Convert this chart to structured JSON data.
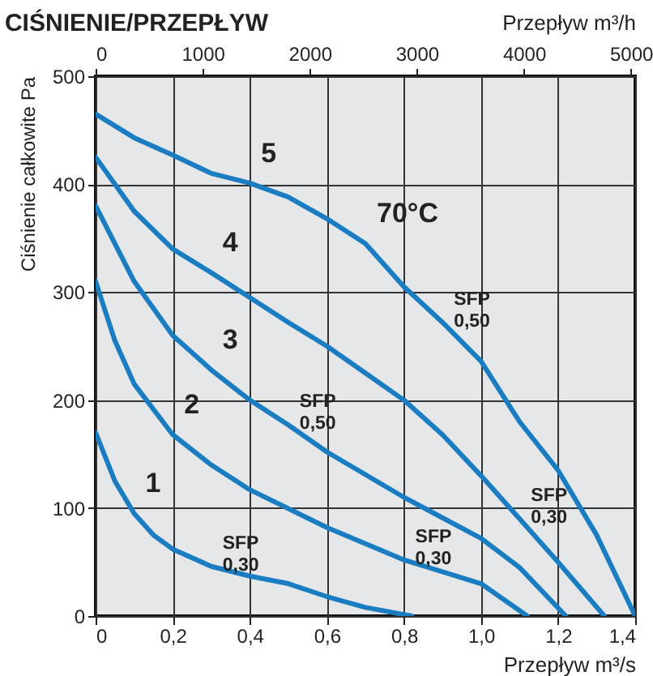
{
  "chart_data": {
    "type": "line",
    "title": "CIŚNIENIE/PRZEPŁYW",
    "xlabel": "Przepływ m³/s",
    "ylabel": "Ciśnienie całkowite Pa",
    "x2label": "Przepływ m³/h",
    "xlim": [
      0,
      1.4
    ],
    "xticks": [
      0,
      {
        "value": 0.2,
        "label": "0,2"
      },
      {
        "value": 0.4,
        "label": "0,4"
      },
      {
        "value": 0.6,
        "label": "0,6"
      },
      {
        "value": 0.8,
        "label": "0,8"
      },
      {
        "value": 1.0,
        "label": "1,0"
      },
      {
        "value": 1.2,
        "label": "1,2"
      },
      {
        "value": 1.4,
        "label": "1,4"
      }
    ],
    "x2lim": [
      0,
      5040
    ],
    "x2ticks": [
      0,
      1000,
      2000,
      3000,
      4000,
      5000
    ],
    "ylim": [
      0,
      500
    ],
    "yticks": [
      0,
      100,
      200,
      300,
      400,
      500
    ],
    "grid": true,
    "legend": false,
    "marker": "none",
    "line_style": "solid",
    "series": [
      {
        "color": "#1a7dc2",
        "x": [
          0,
          0.05,
          0.1,
          0.15,
          0.2,
          0.3,
          0.4,
          0.5,
          0.6,
          0.7,
          0.82
        ],
        "values": [
          170,
          125,
          95,
          75,
          62,
          46,
          37,
          30,
          18,
          8,
          0
        ]
      },
      {
        "color": "#1a7dc2",
        "x": [
          0,
          0.05,
          0.1,
          0.2,
          0.3,
          0.4,
          0.6,
          0.8,
          1.0,
          1.12
        ],
        "values": [
          310,
          255,
          215,
          168,
          140,
          117,
          82,
          52,
          30,
          0
        ]
      },
      {
        "color": "#1a7dc2",
        "x": [
          0,
          0.1,
          0.2,
          0.3,
          0.4,
          0.5,
          0.6,
          0.8,
          1.0,
          1.1,
          1.22
        ],
        "values": [
          380,
          310,
          260,
          228,
          200,
          177,
          152,
          110,
          72,
          45,
          0
        ]
      },
      {
        "color": "#1a7dc2",
        "x": [
          0,
          0.1,
          0.2,
          0.3,
          0.4,
          0.5,
          0.6,
          0.7,
          0.8,
          0.9,
          1.0,
          1.1,
          1.2,
          1.32
        ],
        "values": [
          425,
          375,
          340,
          318,
          295,
          272,
          250,
          225,
          200,
          168,
          130,
          90,
          50,
          0
        ]
      },
      {
        "color": "#1a7dc2",
        "x": [
          0,
          0.1,
          0.2,
          0.3,
          0.4,
          0.5,
          0.6,
          0.7,
          0.8,
          0.9,
          1.0,
          1.1,
          1.2,
          1.3,
          1.4
        ],
        "values": [
          465,
          443,
          427,
          410,
          401,
          388,
          368,
          345,
          305,
          272,
          236,
          180,
          135,
          75,
          0
        ]
      }
    ],
    "annotations": [
      {
        "text": "1",
        "x": 0.1,
        "y": 95
      },
      {
        "text": "2",
        "x": 0.2,
        "y": 168
      },
      {
        "text": "3",
        "x": 0.3,
        "y": 228
      },
      {
        "text": "4",
        "x": 0.3,
        "y": 318
      },
      {
        "text": "5",
        "x": 0.4,
        "y": 401
      },
      {
        "text": "70°C",
        "x": 0.7,
        "y": 345
      },
      {
        "text": "SFP\n0,50",
        "x": 0.5,
        "y": 177
      },
      {
        "text": "SFP\n0,50",
        "x": 0.9,
        "y": 272
      },
      {
        "text": "SFP\n0,30",
        "x": 0.3,
        "y": 46
      },
      {
        "text": "SFP\n0,30",
        "x": 0.8,
        "y": 52
      },
      {
        "text": "SFP\n0,30",
        "x": 1.1,
        "y": 90
      }
    ]
  }
}
